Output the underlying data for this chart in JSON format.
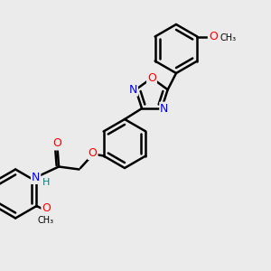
{
  "bg_color": "#ebebeb",
  "bond_color": "#000000",
  "bond_width": 1.8,
  "atom_colors": {
    "O": "#ff0000",
    "N": "#0000ff",
    "C": "#000000",
    "H": "#008080"
  },
  "font_size": 8,
  "fig_size": [
    3.0,
    3.0
  ],
  "dpi": 100
}
